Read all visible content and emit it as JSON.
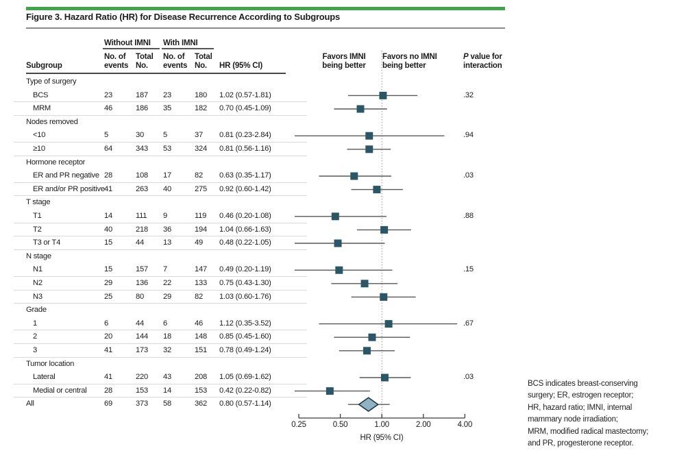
{
  "figure": {
    "title": "Figure 3. Hazard Ratio (HR) for Disease Recurrence According to Subgroups"
  },
  "header": {
    "subgroup": "Subgroup",
    "group_without": "Without IMNI",
    "group_with": "With IMNI",
    "events_l1": "No. of",
    "events_l2": "events",
    "total_l1": "Total",
    "total_l2": "No.",
    "hr_col": "HR (95% CI)",
    "favors_imni_l1": "Favors IMNI",
    "favors_imni_l2": "being better",
    "favors_no_imni_l1": "Favors no IMNI",
    "favors_no_imni_l2": "being better",
    "p_italic": "P",
    "p_rest": " value for",
    "p_line2": "interaction"
  },
  "chart_data": {
    "type": "forest",
    "title": "Hazard Ratio (HR) for Disease Recurrence According to Subgroups",
    "xscale": "log2",
    "xlabel": "HR (95% CI)",
    "xticks": [
      0.25,
      0.5,
      1.0,
      2.0,
      4.0
    ],
    "xtick_labels": [
      "0.25",
      "0.50",
      "1.00",
      "2.00",
      "4.00"
    ],
    "xlim": [
      0.25,
      4.0
    ],
    "ref_line": 1.0,
    "groups": [
      {
        "label": "Type of surgery",
        "rows": [
          {
            "name": "BCS",
            "events_without": 23,
            "total_without": 187,
            "events_with": 23,
            "total_with": 180,
            "hr_ci": "1.02 (0.57-1.81)",
            "hr": 1.02,
            "lo": 0.57,
            "hi": 1.81,
            "p": ".32"
          },
          {
            "name": "MRM",
            "events_without": 46,
            "total_without": 186,
            "events_with": 35,
            "total_with": 182,
            "hr_ci": "0.70 (0.45-1.09)",
            "hr": 0.7,
            "lo": 0.45,
            "hi": 1.09
          }
        ]
      },
      {
        "label": "Nodes removed",
        "rows": [
          {
            "name": "<10",
            "events_without": 5,
            "total_without": 30,
            "events_with": 5,
            "total_with": 37,
            "hr_ci": "0.81 (0.23-2.84)",
            "hr": 0.81,
            "lo": 0.23,
            "hi": 2.84,
            "p": ".94"
          },
          {
            "name": "≥10",
            "events_without": 64,
            "total_without": 343,
            "events_with": 53,
            "total_with": 324,
            "hr_ci": "0.81 (0.56-1.16)",
            "hr": 0.81,
            "lo": 0.56,
            "hi": 1.16
          }
        ]
      },
      {
        "label": "Hormone receptor",
        "rows": [
          {
            "name": "ER and PR negative",
            "events_without": 28,
            "total_without": 108,
            "events_with": 17,
            "total_with": 82,
            "hr_ci": "0.63 (0.35-1.17)",
            "hr": 0.63,
            "lo": 0.35,
            "hi": 1.17,
            "p": ".03"
          },
          {
            "name": "ER and/or PR positive",
            "events_without": 41,
            "total_without": 263,
            "events_with": 40,
            "total_with": 275,
            "hr_ci": "0.92 (0.60-1.42)",
            "hr": 0.92,
            "lo": 0.6,
            "hi": 1.42
          }
        ]
      },
      {
        "label": "T stage",
        "rows": [
          {
            "name": "T1",
            "events_without": 14,
            "total_without": 111,
            "events_with": 9,
            "total_with": 119,
            "hr_ci": "0.46 (0.20-1.08)",
            "hr": 0.46,
            "lo": 0.2,
            "hi": 1.08,
            "p": ".88"
          },
          {
            "name": "T2",
            "events_without": 40,
            "total_without": 218,
            "events_with": 36,
            "total_with": 194,
            "hr_ci": "1.04 (0.66-1.63)",
            "hr": 1.04,
            "lo": 0.66,
            "hi": 1.63
          },
          {
            "name": "T3 or T4",
            "events_without": 15,
            "total_without": 44,
            "events_with": 13,
            "total_with": 49,
            "hr_ci": "0.48 (0.22-1.05)",
            "hr": 0.48,
            "lo": 0.22,
            "hi": 1.05
          }
        ]
      },
      {
        "label": "N stage",
        "rows": [
          {
            "name": "N1",
            "events_without": 15,
            "total_without": 157,
            "events_with": 7,
            "total_with": 147,
            "hr_ci": "0.49 (0.20-1.19)",
            "hr": 0.49,
            "lo": 0.2,
            "hi": 1.19,
            "p": ".15"
          },
          {
            "name": "N2",
            "events_without": 29,
            "total_without": 136,
            "events_with": 22,
            "total_with": 133,
            "hr_ci": "0.75 (0.43-1.30)",
            "hr": 0.75,
            "lo": 0.43,
            "hi": 1.3
          },
          {
            "name": "N3",
            "events_without": 25,
            "total_without": 80,
            "events_with": 29,
            "total_with": 82,
            "hr_ci": "1.03 (0.60-1.76)",
            "hr": 1.03,
            "lo": 0.6,
            "hi": 1.76
          }
        ]
      },
      {
        "label": "Grade",
        "rows": [
          {
            "name": "1",
            "events_without": 6,
            "total_without": 44,
            "events_with": 6,
            "total_with": 46,
            "hr_ci": "1.12 (0.35-3.52)",
            "hr": 1.12,
            "lo": 0.35,
            "hi": 3.52,
            "p": ".67"
          },
          {
            "name": "2",
            "events_without": 20,
            "total_without": 144,
            "events_with": 18,
            "total_with": 148,
            "hr_ci": "0.85 (0.45-1.60)",
            "hr": 0.85,
            "lo": 0.45,
            "hi": 1.6
          },
          {
            "name": "3",
            "events_without": 41,
            "total_without": 173,
            "events_with": 32,
            "total_with": 151,
            "hr_ci": "0.78 (0.49-1.24)",
            "hr": 0.78,
            "lo": 0.49,
            "hi": 1.24
          }
        ]
      },
      {
        "label": "Tumor location",
        "rows": [
          {
            "name": "Lateral",
            "events_without": 41,
            "total_without": 220,
            "events_with": 43,
            "total_with": 208,
            "hr_ci": "1.05 (0.69-1.62)",
            "hr": 1.05,
            "lo": 0.69,
            "hi": 1.62,
            "p": ".03"
          },
          {
            "name": "Medial or central",
            "events_without": 28,
            "total_without": 153,
            "events_with": 14,
            "total_with": 153,
            "hr_ci": "0.42 (0.22-0.82)",
            "hr": 0.42,
            "lo": 0.22,
            "hi": 0.82
          }
        ]
      }
    ],
    "overall": {
      "name": "All",
      "events_without": 69,
      "total_without": 373,
      "events_with": 58,
      "total_with": 362,
      "hr_ci": "0.80 (0.57-1.14)",
      "hr": 0.8,
      "lo": 0.57,
      "hi": 1.14,
      "marker": "diamond"
    }
  },
  "footnote": {
    "lines": [
      "BCS indicates breast-conserving",
      "surgery; ER, estrogen receptor;",
      "HR, hazard ratio; IMNI, internal",
      "mammary node irradiation;",
      "MRM, modified radical mastectomy;",
      "and PR, progesterone receptor."
    ]
  },
  "colors": {
    "accent_green": "#3EA54A",
    "marker": "#2A5666",
    "diamond_fill": "#8FB3C3",
    "diamond_stroke": "#203A46",
    "whisker": "#565656",
    "axis": "#3A3A3A",
    "ref_line": "#8A8A8A",
    "hairline": "#D9D9D9"
  }
}
